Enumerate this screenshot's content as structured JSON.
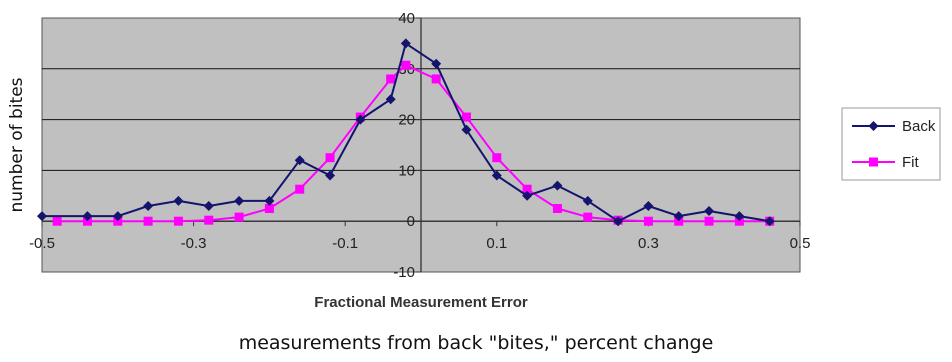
{
  "chart_data": {
    "type": "line",
    "xlabel": "Fractional Measurement Error",
    "ylabel": "number of bites",
    "xlim": [
      -0.5,
      0.5
    ],
    "ylim": [
      -10,
      40
    ],
    "xticks": [
      "-0.5",
      "-0.3",
      "-0.1",
      "0.1",
      "0.3",
      "0.5"
    ],
    "yticks": [
      "-10",
      "0",
      "10",
      "20",
      "30",
      "40"
    ],
    "grid": true,
    "legend_position": "right",
    "colors": {
      "plot_bg": "#c0c0c0",
      "Back": "#14146e",
      "Fit": "#ff00ff"
    },
    "series": [
      {
        "name": "Back",
        "marker": "diamond",
        "points": [
          [
            -0.5,
            1
          ],
          [
            -0.44,
            1
          ],
          [
            -0.4,
            1
          ],
          [
            -0.36,
            3
          ],
          [
            -0.32,
            4
          ],
          [
            -0.28,
            3
          ],
          [
            -0.24,
            4
          ],
          [
            -0.2,
            4
          ],
          [
            -0.16,
            12
          ],
          [
            -0.12,
            9
          ],
          [
            -0.08,
            20
          ],
          [
            -0.04,
            24
          ],
          [
            -0.02,
            35
          ],
          [
            0.02,
            31
          ],
          [
            0.06,
            18
          ],
          [
            0.1,
            9
          ],
          [
            0.14,
            5
          ],
          [
            0.18,
            7
          ],
          [
            0.22,
            4
          ],
          [
            0.26,
            0
          ],
          [
            0.3,
            3
          ],
          [
            0.34,
            1
          ],
          [
            0.38,
            2
          ],
          [
            0.42,
            1
          ],
          [
            0.46,
            0
          ]
        ]
      },
      {
        "name": "Fit",
        "marker": "square",
        "points": [
          [
            -0.48,
            0
          ],
          [
            -0.44,
            0
          ],
          [
            -0.4,
            0
          ],
          [
            -0.36,
            0
          ],
          [
            -0.32,
            0
          ],
          [
            -0.28,
            0.2
          ],
          [
            -0.24,
            0.8
          ],
          [
            -0.2,
            2.5
          ],
          [
            -0.16,
            6.3
          ],
          [
            -0.12,
            12.5
          ],
          [
            -0.08,
            20.5
          ],
          [
            -0.04,
            28
          ],
          [
            -0.02,
            30.7
          ],
          [
            0.02,
            28
          ],
          [
            0.06,
            20.5
          ],
          [
            0.1,
            12.5
          ],
          [
            0.14,
            6.3
          ],
          [
            0.18,
            2.5
          ],
          [
            0.22,
            0.8
          ],
          [
            0.26,
            0.2
          ],
          [
            0.3,
            0
          ],
          [
            0.34,
            0
          ],
          [
            0.38,
            0
          ],
          [
            0.42,
            0
          ],
          [
            0.46,
            0
          ]
        ]
      }
    ]
  },
  "caption": "measurements from back \"bites,\" percent change"
}
